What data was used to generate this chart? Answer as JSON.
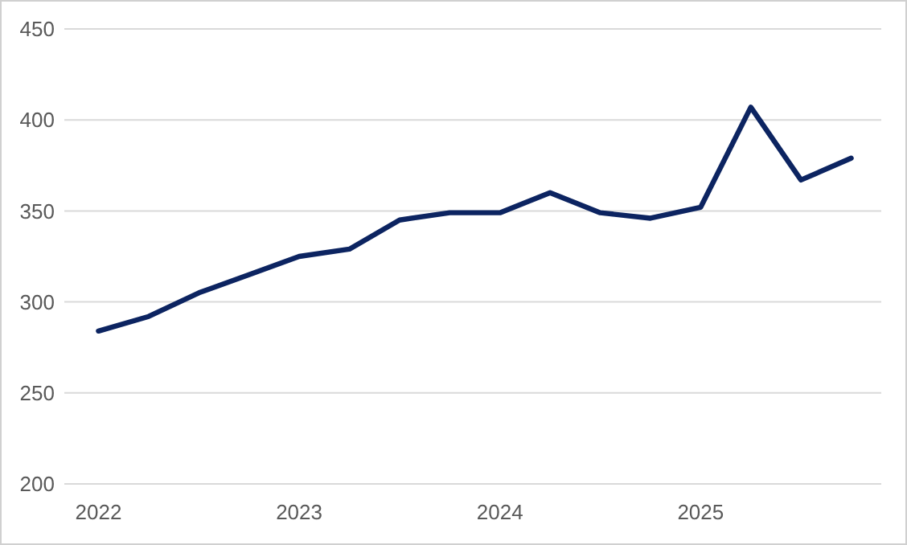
{
  "chart_data": {
    "type": "line",
    "x": [
      2022,
      2022.25,
      2022.5,
      2022.75,
      2023,
      2023.25,
      2023.5,
      2023.75,
      2024,
      2024.25,
      2024.5,
      2024.75,
      2025,
      2025.25,
      2025.5,
      2025.75
    ],
    "series": [
      {
        "color": "#0c2461",
        "values": [
          284,
          292,
          305,
          315,
          325,
          329,
          345,
          349,
          349,
          360,
          349,
          346,
          352,
          407,
          367,
          379
        ]
      }
    ],
    "xlim": [
      2021.83,
      2025.9
    ],
    "xticks": [
      2022,
      2023,
      2024,
      2025
    ],
    "ylim": [
      200,
      450
    ],
    "yticks": [
      200,
      250,
      300,
      350,
      400,
      450
    ],
    "grid": "y",
    "marker": "none",
    "line_style": "solid"
  }
}
